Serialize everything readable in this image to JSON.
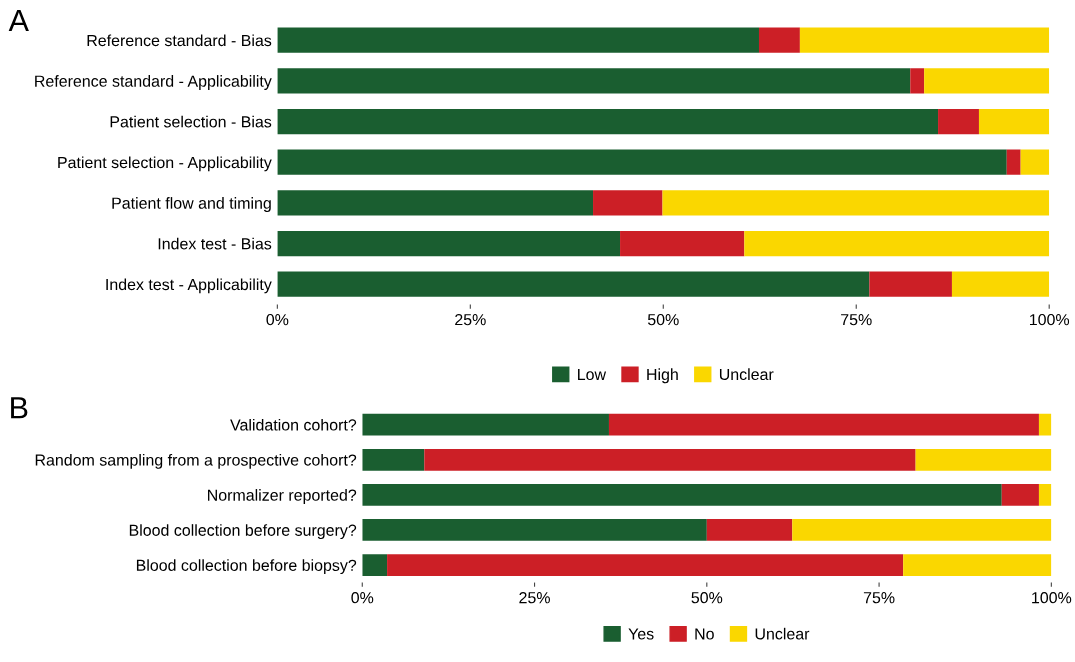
{
  "chart_data": [
    {
      "type": "bar",
      "title": "A",
      "orientation": "horizontal",
      "stacked": true,
      "legend": "bottom",
      "grid": false,
      "categories": [
        "Reference standard - Bias",
        "Reference standard - Applicability",
        "Patient selection - Bias",
        "Patient selection - Applicability",
        "Patient flow and timing",
        "Index test - Bias",
        "Index test - Applicability"
      ],
      "series": [
        {
          "name": "Low",
          "color": "#1a5e30",
          "values": [
            62.4,
            82.0,
            85.6,
            94.5,
            40.9,
            44.4,
            76.7
          ]
        },
        {
          "name": "High",
          "color": "#cc1f26",
          "values": [
            5.3,
            1.8,
            5.3,
            1.8,
            9.0,
            16.1,
            10.7
          ]
        },
        {
          "name": "Unclear",
          "color": "#fad700",
          "values": [
            32.3,
            16.2,
            9.1,
            3.7,
            50.1,
            39.5,
            12.6
          ]
        }
      ],
      "xlim": [
        0,
        100
      ],
      "xticks": [
        {
          "value": 0,
          "label": "0%"
        },
        {
          "value": 25,
          "label": "25%"
        },
        {
          "value": 50,
          "label": "50%"
        },
        {
          "value": 75,
          "label": "75%"
        },
        {
          "value": 100,
          "label": "100%"
        }
      ]
    },
    {
      "type": "bar",
      "title": "B",
      "orientation": "horizontal",
      "stacked": true,
      "legend": "bottom",
      "grid": false,
      "categories": [
        "Validation cohort?",
        "Random sampling from a prospective cohort?",
        "Normalizer reported?",
        "Blood collection before surgery?",
        "Blood collection before biopsy?"
      ],
      "series": [
        {
          "name": "Yes",
          "color": "#1a5e30",
          "values": [
            35.8,
            9.0,
            92.8,
            50.0,
            3.6
          ]
        },
        {
          "name": "No",
          "color": "#cc1f26",
          "values": [
            62.4,
            71.3,
            5.4,
            12.4,
            74.9
          ]
        },
        {
          "name": "Unclear",
          "color": "#fad700",
          "values": [
            1.8,
            19.7,
            1.8,
            37.6,
            21.5
          ]
        }
      ],
      "xlim": [
        0,
        100
      ],
      "xticks": [
        {
          "value": 0,
          "label": "0%"
        },
        {
          "value": 25,
          "label": "25%"
        },
        {
          "value": 50,
          "label": "50%"
        },
        {
          "value": 75,
          "label": "75%"
        },
        {
          "value": 100,
          "label": "100%"
        }
      ]
    }
  ]
}
